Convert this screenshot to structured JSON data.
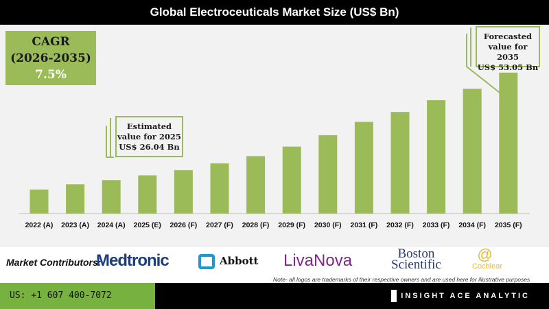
{
  "chart_data": {
    "type": "bar",
    "title": "Global Electroceuticals Market Size (US$ Bn)",
    "categories": [
      "2022 (A)",
      "2023 (A)",
      "2024 (A)",
      "2025 (E)",
      "2026 (F)",
      "2027 (F)",
      "2028 (F)",
      "2029 (F)",
      "2030 (F)",
      "2031 (F)",
      "2032 (F)",
      "2033 (F)",
      "2034 (F)",
      "2035 (F)"
    ],
    "values": [
      22.3,
      23.7,
      24.8,
      26.04,
      27.4,
      29.2,
      31.1,
      33.6,
      36.6,
      40.1,
      42.7,
      45.8,
      48.8,
      53.05
    ],
    "ylim": [
      16,
      55
    ],
    "bar_color": "#9bbb59",
    "grid": false,
    "xlabel": "",
    "ylabel": ""
  },
  "cagr": {
    "line1": "CAGR",
    "line2": "(2026-2035)",
    "line3": "7.5%"
  },
  "callout_2025": {
    "line1": "Estimated",
    "line2": "value for 2025",
    "line3": "US$ 26.04 Bn"
  },
  "callout_2035": {
    "line1": "Forecasted",
    "line2": "value for 2035",
    "line3": "US$ 53.05 Bn"
  },
  "contributors": {
    "label": "Market Contributors:",
    "logos": [
      "Medtronic",
      "Abbott",
      "LivaNova",
      "Boston",
      "Scientific",
      "Cochlear"
    ],
    "note": "Note- all logos are trademarks of their respective owners and are used here for illustrative purposes"
  },
  "footer": {
    "phone": "US: +1 607 400-7072",
    "brand": "INSIGHT ACE ANALYTIC"
  }
}
